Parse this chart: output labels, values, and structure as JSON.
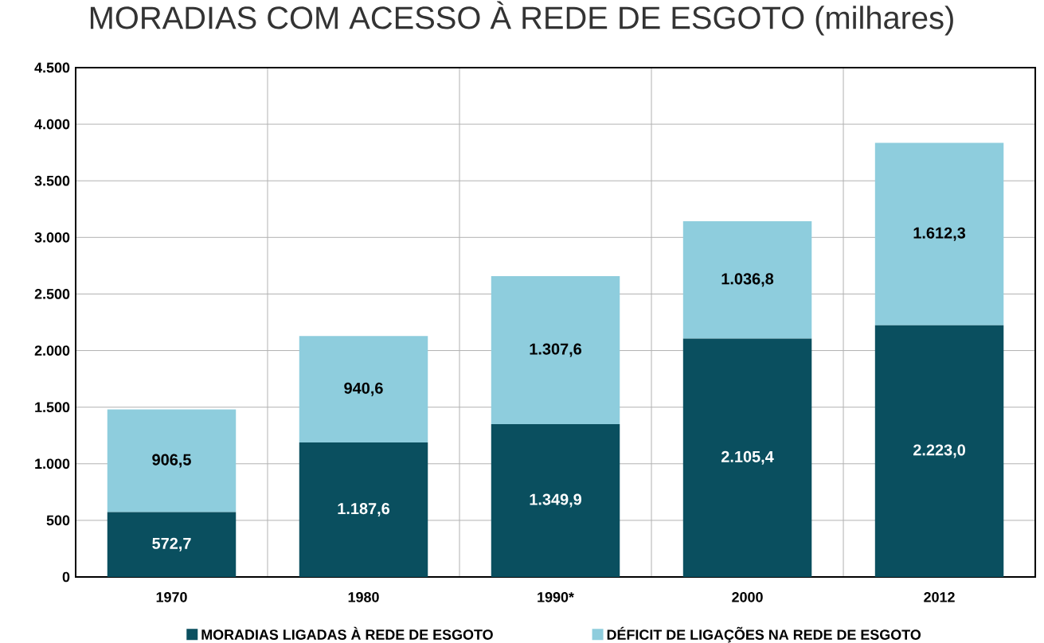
{
  "chart_data": {
    "type": "bar",
    "title": "MORADIAS COM ACESSO À REDE DE ESGOTO (milhares)",
    "stacked": true,
    "categories": [
      "1970",
      "1980",
      "1990*",
      "2000",
      "2012"
    ],
    "series": [
      {
        "name": "MORADIAS LIGADAS À REDE DE ESGOTO",
        "color": "#0a4f5f",
        "values": [
          572.7,
          1187.6,
          1349.9,
          2105.4,
          2223.0
        ],
        "value_labels": [
          "572,7",
          "1.187,6",
          "1.349,9",
          "2.105,4",
          "2.223,0"
        ]
      },
      {
        "name": "DÉFICIT DE LIGAÇÕES NA REDE DE ESGOTO",
        "color": "#8ecddd",
        "values": [
          906.5,
          940.6,
          1307.6,
          1036.8,
          1612.3
        ],
        "value_labels": [
          "906,5",
          "940,6",
          "1.307,6",
          "1.036,8",
          "1.612,3"
        ]
      }
    ],
    "ylim": [
      0,
      4500
    ],
    "yticks": [
      {
        "value": 0,
        "label": "0"
      },
      {
        "value": 500,
        "label": "500"
      },
      {
        "value": 1000,
        "label": "1.000"
      },
      {
        "value": 1500,
        "label": "1.500"
      },
      {
        "value": 2000,
        "label": "2.000"
      },
      {
        "value": 2500,
        "label": "2.500"
      },
      {
        "value": 3000,
        "label": "3.000"
      },
      {
        "value": 3500,
        "label": "3.500"
      },
      {
        "value": 4000,
        "label": "4.000"
      },
      {
        "value": 4500,
        "label": "4.500"
      }
    ],
    "grid": true,
    "legend": "bottom"
  }
}
